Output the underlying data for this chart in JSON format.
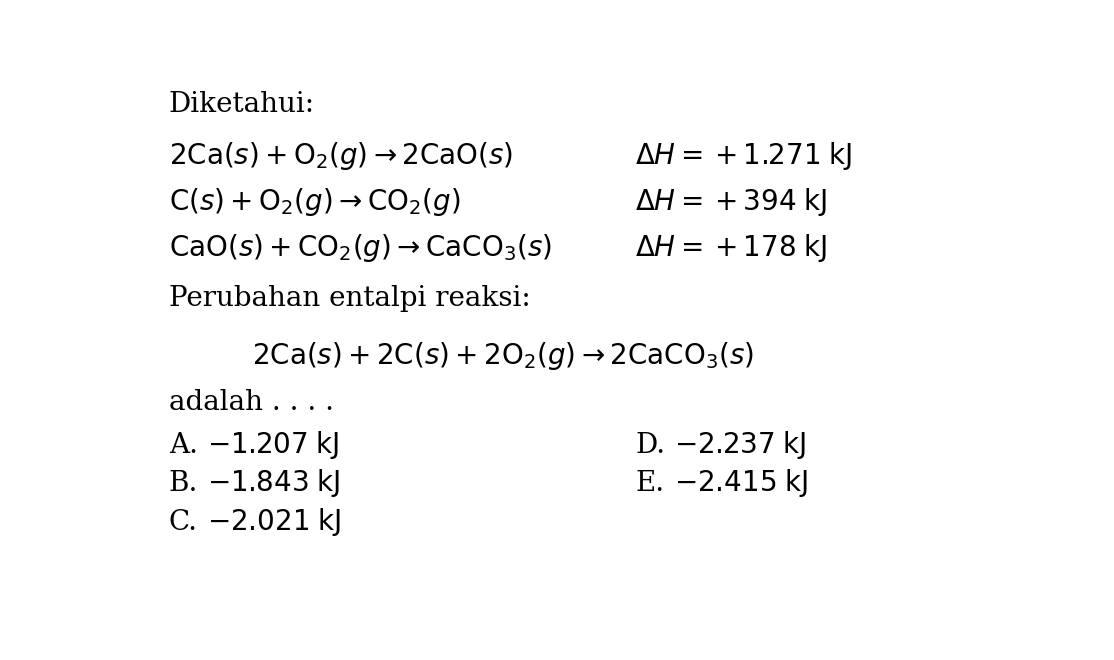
{
  "background_color": "#ffffff",
  "diketahui": "Diketahui:",
  "eq1": "$2\\mathrm{Ca}(s) + \\mathrm{O}_2(g) \\rightarrow 2\\mathrm{CaO}(s)$",
  "dh1": "$\\Delta H = +1.271\\;\\mathrm{kJ}$",
  "eq2": "$\\mathrm{C}(s) + \\mathrm{O}_2(g) \\rightarrow \\mathrm{CO}_2(g)$",
  "dh2": "$\\Delta H = +394\\;\\mathrm{kJ}$",
  "eq3": "$\\mathrm{CaO}(s) + \\mathrm{CO}_2(g) \\rightarrow \\mathrm{CaCO}_3(s)$",
  "dh3": "$\\Delta H = +178\\;\\mathrm{kJ}$",
  "perubahan": "Perubahan entalpi reaksi:",
  "big_eq": "$2\\mathrm{Ca}(s) + 2\\mathrm{C}(s) + 2\\mathrm{O}_2(g) \\rightarrow 2\\mathrm{CaCO}_3(s)$",
  "adalah": "adalah . . . .",
  "optA": "A.",
  "valA": "$-1.207\\;\\mathrm{kJ}$",
  "optB": "B.",
  "valB": "$-1.843\\;\\mathrm{kJ}$",
  "optC": "C.",
  "valC": "$-2.021\\;\\mathrm{kJ}$",
  "optD": "D.",
  "valD": "$-2.237\\;\\mathrm{kJ}$",
  "optE": "E.",
  "valE": "$-2.415\\;\\mathrm{kJ}$",
  "fs": 20,
  "fs_math": 20
}
